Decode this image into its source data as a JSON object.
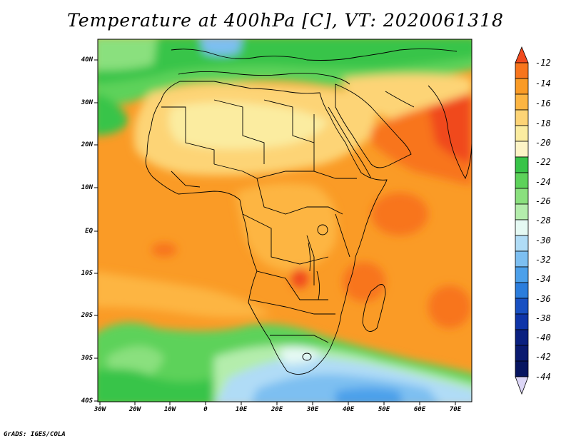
{
  "title": "Temperature at 400hPa [C], VT: 2020061318",
  "credit": "GrADS: IGES/COLA",
  "lat_labels": [
    "40N",
    "30N",
    "20N",
    "10N",
    "EQ",
    "10S",
    "20S",
    "30S",
    "40S"
  ],
  "lon_labels": [
    "30W",
    "20W",
    "10W",
    "0",
    "10E",
    "20E",
    "30E",
    "40E",
    "50E",
    "60E",
    "70E"
  ],
  "colorbar": {
    "labels": [
      "-12",
      "-14",
      "-16",
      "-18",
      "-20",
      "-22",
      "-24",
      "-26",
      "-28",
      "-30",
      "-32",
      "-34",
      "-36",
      "-38",
      "-40",
      "-42",
      "-44"
    ],
    "colors": [
      "#f04a1e",
      "#f8751c",
      "#fa9b26",
      "#fdb542",
      "#fdd476",
      "#fbeca0",
      "#38c448",
      "#5dd25a",
      "#8ae07e",
      "#b4edac",
      "#e5f9f3",
      "#b0dcf6",
      "#7dbff1",
      "#4ca0ea",
      "#2b7ddc",
      "#1850c2",
      "#0a2a8a"
    ]
  },
  "map": {
    "variable": "Temperature",
    "level": "400hPa",
    "units": "C",
    "valid_time": "2020061318"
  }
}
